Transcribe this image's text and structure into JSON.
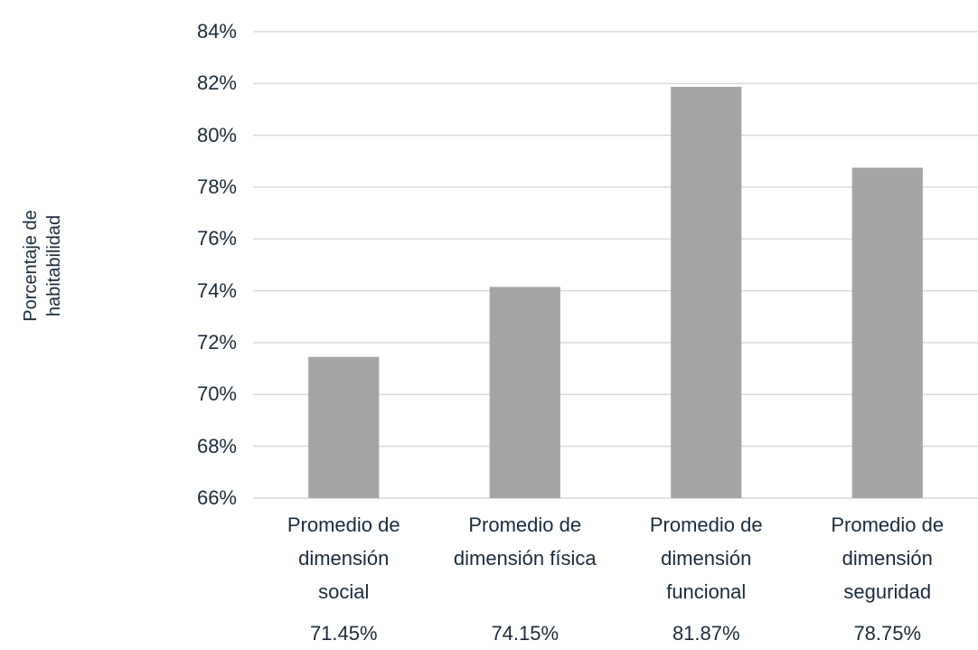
{
  "chart_data": {
    "type": "bar",
    "y_axis_label": "Porcentaje de habitabilidad",
    "categories": [
      "Promedio de dimensión social",
      "Promedio de dimensión física",
      "Promedio de dimensión funcional",
      "Promedio de dimensión seguridad"
    ],
    "values": [
      71.45,
      74.15,
      81.87,
      78.75
    ],
    "value_labels": [
      "71.45%",
      "74.15%",
      "81.87%",
      "78.75%"
    ],
    "color": "#a5a5a5",
    "ylim": [
      66,
      84
    ],
    "yticks": [
      {
        "value": 66,
        "label": "66%"
      },
      {
        "value": 68,
        "label": "68%"
      },
      {
        "value": 70,
        "label": "70%"
      },
      {
        "value": 72,
        "label": "72%"
      },
      {
        "value": 74,
        "label": "74%"
      },
      {
        "value": 76,
        "label": "76%"
      },
      {
        "value": 78,
        "label": "78%"
      },
      {
        "value": 80,
        "label": "80%"
      },
      {
        "value": 82,
        "label": "82%"
      },
      {
        "value": 84,
        "label": "84%"
      }
    ],
    "grid": true
  }
}
